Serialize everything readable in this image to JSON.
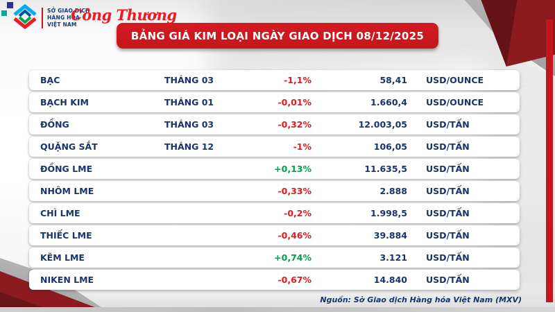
{
  "colors": {
    "brand_red": "#c4161d",
    "navy": "#16356e",
    "negative": "#e01b22",
    "positive": "#00a14b",
    "maroon": "#8c1b20",
    "decor_gray": "#c7c7c7"
  },
  "header": {
    "mxv_logo_lines": [
      "SỞ GIAO DỊCH",
      "HÀNG HÓA",
      "VIỆT NAM"
    ],
    "congthuong_logo": "Công Thương",
    "title": "BẢNG GIÁ KIM LOẠI NGÀY GIAO DỊCH 08/12/2025"
  },
  "footer": {
    "source": "Nguồn: Sở Giao dịch Hàng hóa Việt Nam (MXV)"
  },
  "icons": {
    "logo": "mxv-diamond-icon"
  },
  "chart_data": {
    "type": "table",
    "title": "BẢNG GIÁ KIM LOẠI NGÀY GIAO DỊCH 08/12/2025",
    "columns": [
      "name",
      "month",
      "change",
      "price",
      "unit"
    ],
    "legend_position": "none",
    "rows": [
      {
        "name": "BẠC",
        "month": "THÁNG 03",
        "change": "-1,1%",
        "direction": "down",
        "price": "58,41",
        "unit": "USD/OUNCE"
      },
      {
        "name": "BẠCH KIM",
        "month": "THÁNG 01",
        "change": "-0,01%",
        "direction": "down",
        "price": "1.660,4",
        "unit": "USD/OUNCE"
      },
      {
        "name": "ĐỒNG",
        "month": "THÁNG 03",
        "change": "-0,32%",
        "direction": "down",
        "price": "12.003,05",
        "unit": "USD/TẤN"
      },
      {
        "name": "QUẶNG SẮT",
        "month": "THÁNG 12",
        "change": "-1%",
        "direction": "down",
        "price": "106,05",
        "unit": "USD/TẤN"
      },
      {
        "name": "ĐỒNG LME",
        "month": "",
        "change": "+0,13%",
        "direction": "up",
        "price": "11.635,5",
        "unit": "USD/TẤN"
      },
      {
        "name": "NHÔM LME",
        "month": "",
        "change": "-0,33%",
        "direction": "down",
        "price": "2.888",
        "unit": "USD/TẤN"
      },
      {
        "name": "CHÌ LME",
        "month": "",
        "change": "-0,2%",
        "direction": "down",
        "price": "1.998,5",
        "unit": "USD/TẤN"
      },
      {
        "name": "THIẾC LME",
        "month": "",
        "change": "-0,46%",
        "direction": "down",
        "price": "39.884",
        "unit": "USD/TẤN"
      },
      {
        "name": "KẼM LME",
        "month": "",
        "change": "+0,74%",
        "direction": "up",
        "price": "3.121",
        "unit": "USD/TẤN"
      },
      {
        "name": "NIKEN LME",
        "month": "",
        "change": "-0,67%",
        "direction": "down",
        "price": "14.840",
        "unit": "USD/TẤN"
      }
    ]
  }
}
